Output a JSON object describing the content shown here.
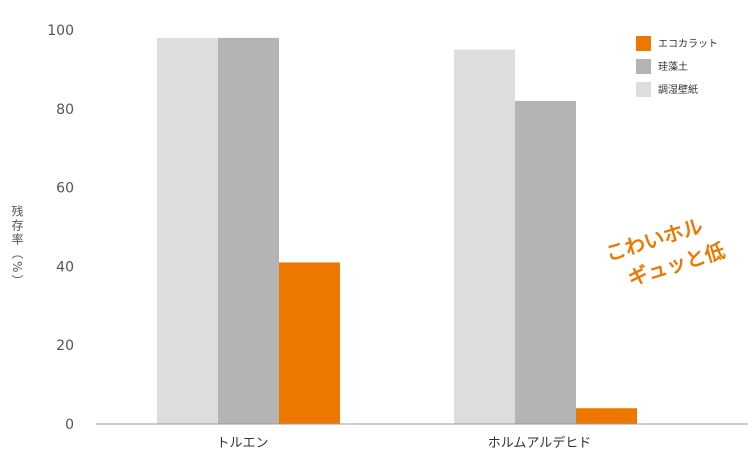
{
  "chart_data": {
    "type": "bar",
    "title": "",
    "xlabel": "",
    "ylabel": "残存率（%）",
    "ylim": [
      0,
      100
    ],
    "yticks": [
      0,
      20,
      40,
      60,
      80,
      100
    ],
    "categories": [
      "トルエン",
      "ホルムアルデヒド"
    ],
    "series": [
      {
        "name": "調湿壁紙",
        "color": "#dcdddd",
        "values": [
          98,
          95
        ]
      },
      {
        "name": "珪藻土",
        "color": "#b4b4b4",
        "values": [
          98,
          82
        ]
      },
      {
        "name": "エコカラット",
        "color": "#ee7700",
        "values": [
          41,
          4
        ]
      }
    ],
    "legend": {
      "position": "top-right",
      "order": [
        "エコカラット",
        "珪藻土",
        "調湿壁紙"
      ]
    },
    "grid": false
  },
  "overlay": {
    "line1": "こわいホル",
    "line2": "ギュッと低",
    "color": "#ee7700"
  }
}
